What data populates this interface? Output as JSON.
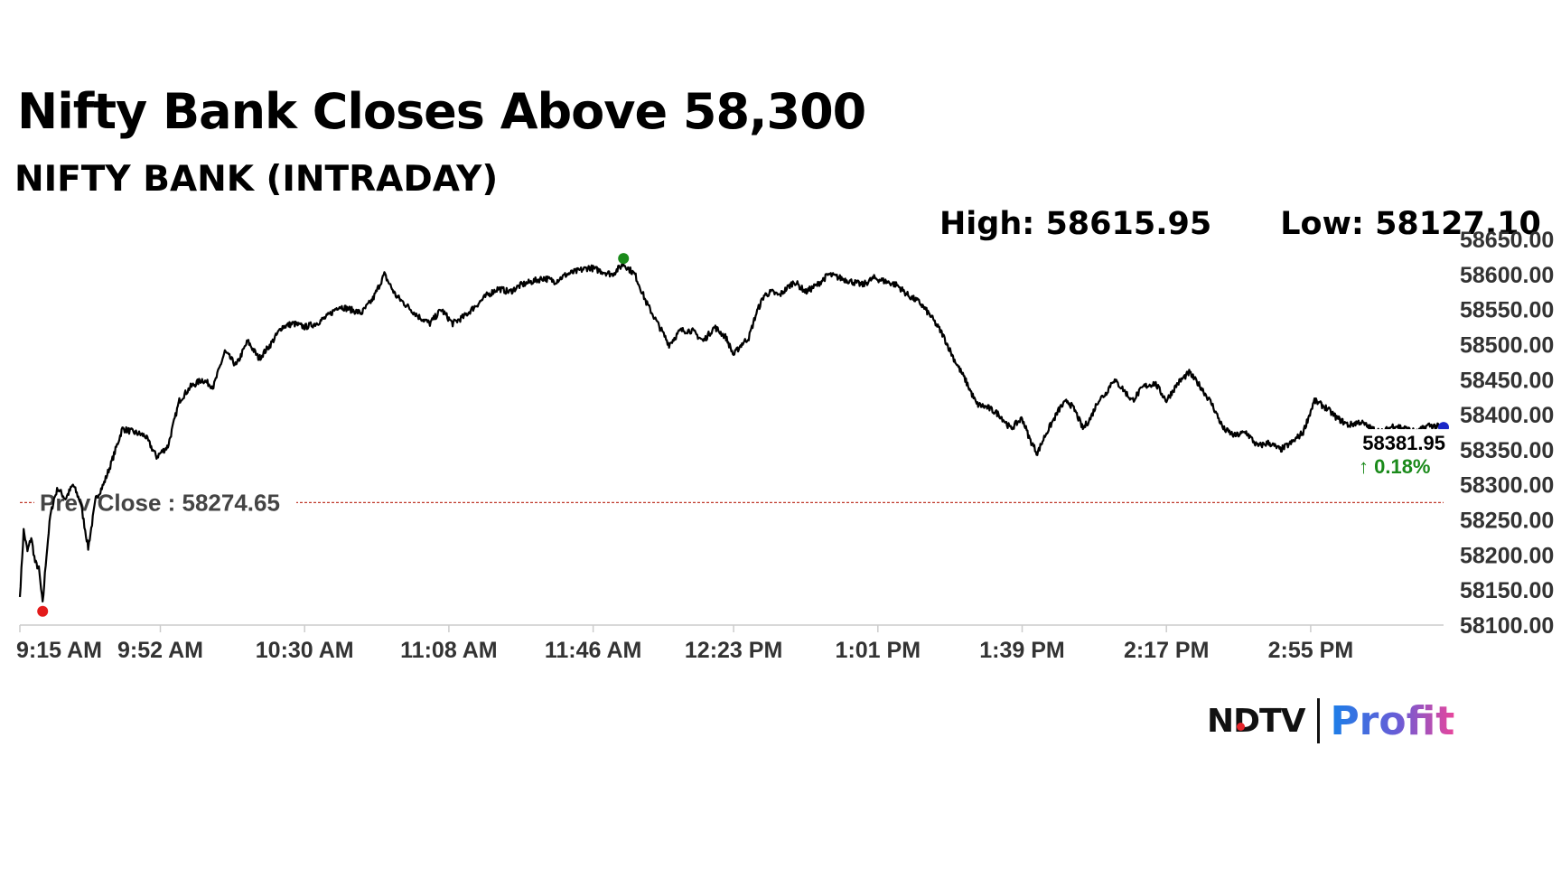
{
  "headline": "Nifty Bank Closes Above 58,300",
  "subtitle": "NIFTY BANK (INTRADAY)",
  "stats": {
    "high": "High: 58615.95",
    "low": "Low: 58127.10"
  },
  "brand": {
    "ndtv": "NDTV",
    "profit": "Profit",
    "accent_red": "#e3242b",
    "profit_gradient": [
      "#1a7fe8",
      "#6a5cd6",
      "#e8469c"
    ]
  },
  "chart_data": {
    "type": "line",
    "title": "NIFTY BANK (INTRADAY)",
    "x_ticks": [
      "9:15 AM",
      "9:52 AM",
      "10:30 AM",
      "11:08 AM",
      "11:46 AM",
      "12:23 PM",
      "1:01 PM",
      "1:39 PM",
      "2:17 PM",
      "2:55 PM"
    ],
    "y_ticks": [
      "58100.00",
      "58150.00",
      "58200.00",
      "58250.00",
      "58300.00",
      "58350.00",
      "58400.00",
      "58450.00",
      "58500.00",
      "58550.00",
      "58600.00",
      "58650.00"
    ],
    "ylim": [
      58100,
      58650
    ],
    "x_range_minutes": [
      0,
      375
    ],
    "x_tick_minutes": [
      0,
      37,
      75,
      113,
      151,
      188,
      226,
      264,
      302,
      340
    ],
    "prev_close": {
      "value": 58274.65,
      "label": "Prev Close : 58274.65",
      "color": "#c0392b"
    },
    "last": {
      "value_label": "58381.95",
      "change_label": "↑ 0.18%",
      "change_color": "#1a8a1a",
      "dot_color": "#1a27c7"
    },
    "high_marker_color": "#1a8a1a",
    "low_marker_color": "#e31b1b",
    "line_color": "#000000",
    "grid": false,
    "series": [
      {
        "x": [
          0,
          1,
          2,
          3,
          4,
          5,
          6,
          7,
          8,
          9,
          10,
          12,
          14,
          16,
          18,
          20,
          22,
          24,
          27,
          30,
          33,
          36,
          39,
          42,
          45,
          48,
          51,
          54,
          57,
          60,
          63,
          66,
          69,
          72,
          75,
          78,
          81,
          84,
          87,
          90,
          93,
          96,
          99,
          102,
          105,
          108,
          111,
          114,
          117,
          120,
          123,
          126,
          129,
          132,
          135,
          138,
          141,
          144,
          147,
          150,
          153,
          156,
          159,
          162,
          165,
          168,
          171,
          174,
          177,
          180,
          183,
          186,
          188,
          190,
          192,
          194,
          196,
          198,
          200,
          202,
          204,
          207,
          210,
          213,
          216,
          219,
          222,
          225,
          228,
          231,
          234,
          237,
          240,
          243,
          246,
          249,
          252,
          255,
          258,
          261,
          264,
          266,
          268,
          270,
          272,
          274,
          276,
          278,
          280,
          282,
          284,
          286,
          288,
          290,
          293,
          296,
          299,
          302,
          305,
          308,
          311,
          314,
          317,
          320,
          323,
          326,
          329,
          332,
          335,
          338,
          341,
          344,
          347,
          350,
          353,
          356,
          359,
          362,
          365,
          368,
          371,
          375
        ],
        "y": [
          58140,
          58235,
          58205,
          58225,
          58190,
          58180,
          58130,
          58200,
          58255,
          58280,
          58295,
          58280,
          58300,
          58275,
          58210,
          58280,
          58300,
          58330,
          58380,
          58375,
          58370,
          58340,
          58355,
          58420,
          58440,
          58450,
          58440,
          58490,
          58470,
          58505,
          58480,
          58500,
          58525,
          58530,
          58525,
          58530,
          58540,
          58555,
          58550,
          58545,
          58565,
          58600,
          58570,
          58555,
          58540,
          58530,
          58550,
          58530,
          58540,
          58555,
          58570,
          58580,
          58575,
          58585,
          58590,
          58595,
          58590,
          58600,
          58605,
          58610,
          58605,
          58600,
          58615,
          58600,
          58560,
          58530,
          58500,
          58520,
          58520,
          58505,
          58525,
          58510,
          58485,
          58500,
          58510,
          58545,
          58570,
          58575,
          58570,
          58580,
          58590,
          58575,
          58585,
          58600,
          58595,
          58590,
          58585,
          58595,
          58590,
          58585,
          58570,
          58560,
          58540,
          58515,
          58480,
          58450,
          58415,
          58410,
          58400,
          58380,
          58395,
          58365,
          58345,
          58370,
          58390,
          58410,
          58420,
          58405,
          58380,
          58395,
          58420,
          58430,
          58450,
          58440,
          58420,
          58440,
          58445,
          58420,
          58445,
          58460,
          58440,
          58415,
          58380,
          58370,
          58375,
          58355,
          58360,
          58350,
          58360,
          58375,
          58420,
          58410,
          58395,
          58385,
          58390,
          58380,
          58375,
          58385,
          58380,
          58375,
          58385,
          58381.95
        ]
      }
    ]
  }
}
